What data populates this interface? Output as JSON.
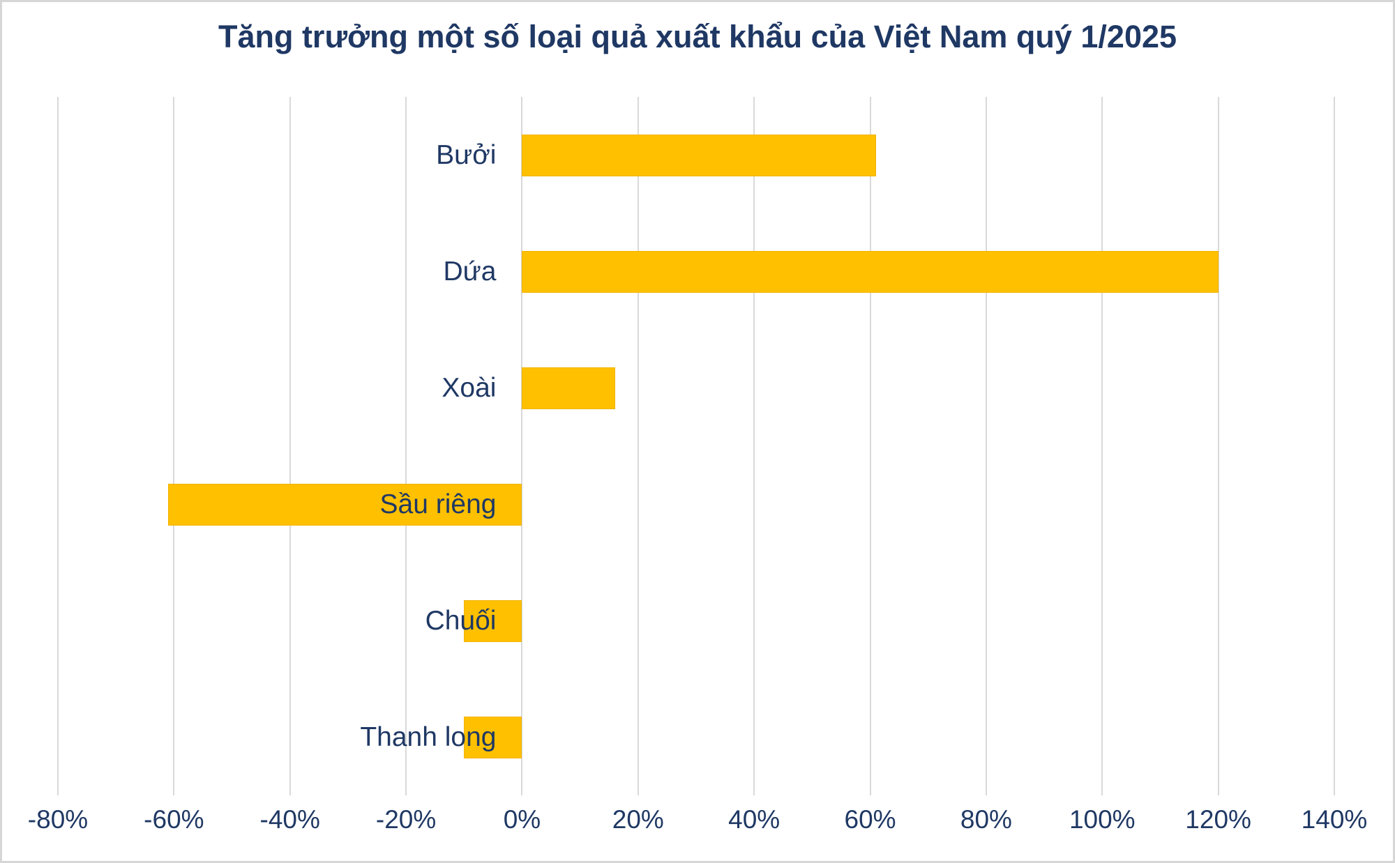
{
  "title": "Tăng trưởng một số loại quả xuất khẩu của Việt Nam quý 1/2025",
  "colors": {
    "bar_fill": "#ffc000",
    "bar_edge": "#f0b300",
    "text_navy": "#1f3864",
    "gridline": "#d9d9d9",
    "background": "#ffffff",
    "frame_border": "#d6d6d6"
  },
  "chart_data": {
    "type": "bar",
    "orientation": "horizontal",
    "title": "Tăng trưởng một số loại quả xuất khẩu của Việt Nam quý 1/2025",
    "categories": [
      "Bưởi",
      "Dứa",
      "Xoài",
      "Sầu riêng",
      "Chuối",
      "Thanh long"
    ],
    "values": [
      61,
      120,
      16,
      -61,
      -10,
      -10
    ],
    "unit": "%",
    "xlabel": "",
    "ylabel": "",
    "xlim": [
      -80,
      140
    ],
    "xticks": [
      -80,
      -60,
      -40,
      -20,
      0,
      20,
      40,
      60,
      80,
      100,
      120,
      140
    ],
    "xtick_labels": [
      "-80%",
      "-60%",
      "-40%",
      "-20%",
      "0%",
      "20%",
      "40%",
      "60%",
      "80%",
      "100%",
      "120%",
      "140%"
    ],
    "grid": "vertical",
    "legend": "none"
  }
}
